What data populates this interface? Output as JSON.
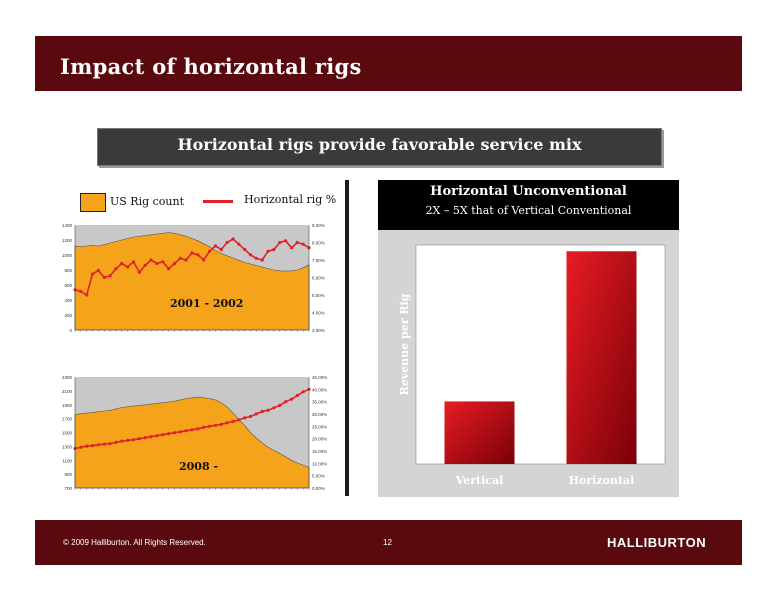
{
  "header": {
    "title": "Impact of horizontal rigs"
  },
  "subtitle": "Horizontal rigs provide favorable service mix",
  "legend": {
    "rig_label": "US Rig count",
    "pct_label": "Horizontal rig %"
  },
  "colors": {
    "area": "#f5a31a",
    "line": "#e0202a",
    "plot_bg": "#c8c8c8",
    "bar_dark": "#7a0008",
    "bar_light": "#e81c24"
  },
  "footer": {
    "copyright": "© 2009 Halliburton. All Rights Reserved.",
    "page": "12",
    "logo": "HALLIBURTON"
  },
  "right_panel": {
    "title": "Horizontal Unconventional",
    "subtitle": "2X – 5X that of Vertical Conventional"
  },
  "chart_data": [
    {
      "type": "area",
      "title": "2001 - 2002",
      "ylim": [
        0,
        1400
      ],
      "y_ticks": [
        "0",
        "200",
        "400",
        "600",
        "800",
        "1000",
        "1200",
        "1400"
      ],
      "y2lim": [
        3.0,
        9.0
      ],
      "y2_ticks": [
        "3.00%",
        "4.00%",
        "5.00%",
        "6.00%",
        "7.00%",
        "8.00%",
        "9.00%"
      ],
      "series": [
        {
          "name": "US Rig count",
          "values": [
            1120,
            1110,
            1120,
            1130,
            1120,
            1140,
            1160,
            1180,
            1200,
            1220,
            1240,
            1250,
            1260,
            1270,
            1280,
            1290,
            1300,
            1290,
            1270,
            1250,
            1220,
            1190,
            1150,
            1110,
            1060,
            1020,
            990,
            960,
            930,
            900,
            880,
            860,
            840,
            820,
            800,
            790,
            785,
            790,
            800,
            830,
            870
          ]
        },
        {
          "name": "Horizontal rig %",
          "values": [
            5.3,
            5.2,
            5.0,
            6.2,
            6.4,
            6.0,
            6.1,
            6.5,
            6.8,
            6.6,
            6.9,
            6.3,
            6.7,
            7.0,
            6.8,
            6.9,
            6.5,
            6.8,
            7.1,
            7.0,
            7.4,
            7.3,
            7.0,
            7.5,
            7.8,
            7.6,
            8.0,
            8.2,
            7.9,
            7.6,
            7.3,
            7.1,
            7.0,
            7.5,
            7.6,
            8.0,
            8.1,
            7.7,
            8.0,
            7.9,
            7.7
          ]
        }
      ]
    },
    {
      "type": "area",
      "title": "2008 -",
      "ylim": [
        700,
        2300
      ],
      "y_ticks": [
        "700",
        "900",
        "1100",
        "1300",
        "1500",
        "1700",
        "1900",
        "2100",
        "2300"
      ],
      "y2lim": [
        0,
        45
      ],
      "y2_ticks": [
        "0.00%",
        "5.00%",
        "10.00%",
        "15.00%",
        "20.00%",
        "25.00%",
        "30.00%",
        "35.00%",
        "40.00%",
        "45.00%"
      ],
      "series": [
        {
          "name": "US Rig count",
          "values": [
            1760,
            1770,
            1780,
            1790,
            1800,
            1810,
            1820,
            1840,
            1860,
            1870,
            1880,
            1890,
            1900,
            1910,
            1920,
            1930,
            1940,
            1950,
            1970,
            1990,
            2000,
            2010,
            2000,
            1990,
            1970,
            1930,
            1870,
            1780,
            1690,
            1600,
            1500,
            1420,
            1350,
            1290,
            1240,
            1200,
            1150,
            1100,
            1060,
            1030,
            1000
          ]
        },
        {
          "name": "Horizontal rig %",
          "values": [
            16,
            16.5,
            17,
            17.2,
            17.5,
            17.8,
            18,
            18.5,
            19,
            19.3,
            19.6,
            20,
            20.4,
            20.8,
            21.2,
            21.6,
            22,
            22.4,
            22.8,
            23.2,
            23.6,
            24,
            24.6,
            25,
            25.4,
            25.8,
            26.4,
            27,
            27.6,
            28.4,
            29,
            30,
            31,
            31.5,
            32.5,
            33.5,
            35,
            36,
            37.5,
            39,
            40
          ]
        }
      ]
    },
    {
      "type": "bar",
      "categories": [
        "Vertical",
        "Horizontal"
      ],
      "values": [
        1,
        3.4
      ],
      "ylabel": "Revenue per Rig",
      "ylim": [
        0,
        3.5
      ]
    }
  ]
}
